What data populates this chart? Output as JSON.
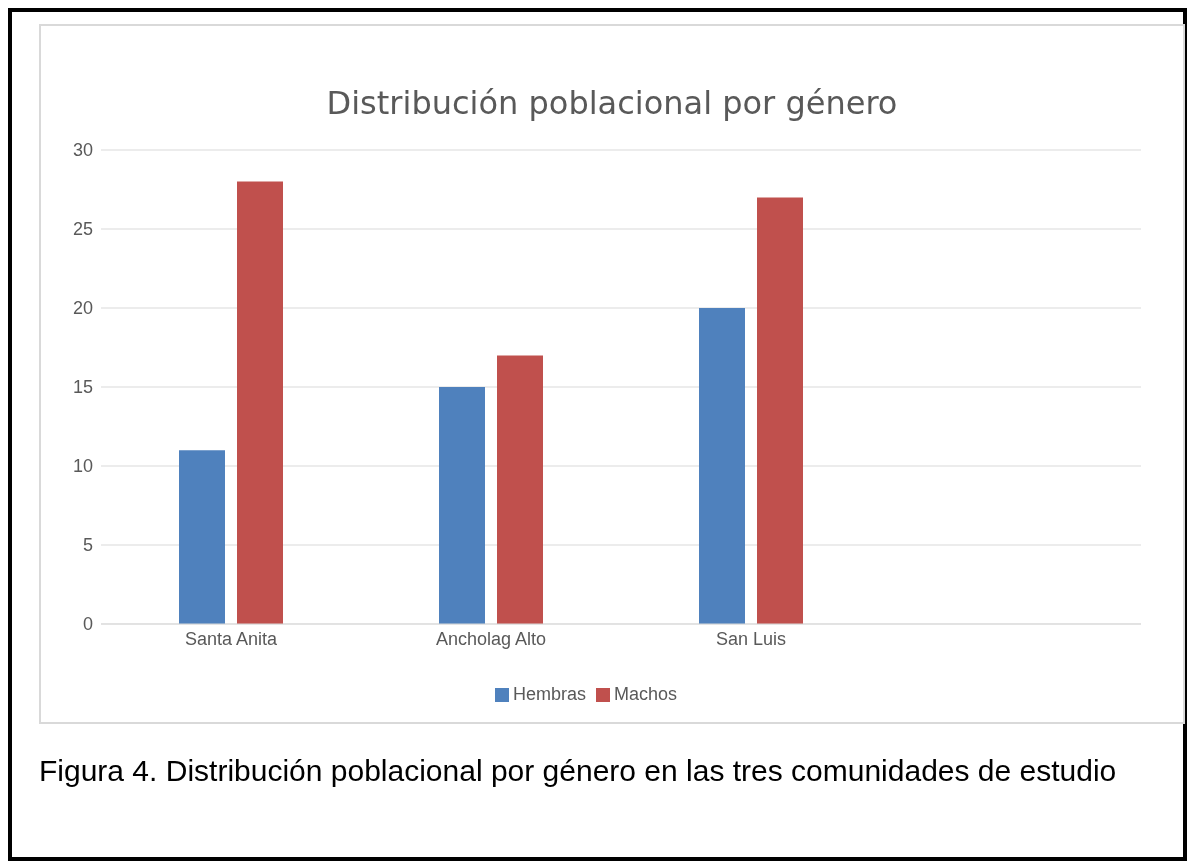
{
  "chart_data": {
    "type": "bar",
    "title": "Distribución poblacional por género",
    "categories": [
      "Santa Anita",
      "Ancholag Alto",
      "San Luis",
      null
    ],
    "series": [
      {
        "name": "Hembras",
        "color": "#4f81bd",
        "values": [
          11,
          15,
          20,
          null
        ]
      },
      {
        "name": "Machos",
        "color": "#c0504d",
        "values": [
          28,
          17,
          27,
          null
        ]
      }
    ],
    "ylim": [
      0,
      30
    ],
    "yticks": [
      0,
      5,
      10,
      15,
      20,
      25,
      30
    ],
    "grid": "y",
    "legend": "bottom",
    "annotations": [
      "Figura 4. Distribución poblacional por género en las tres comunidades de estudio"
    ]
  }
}
